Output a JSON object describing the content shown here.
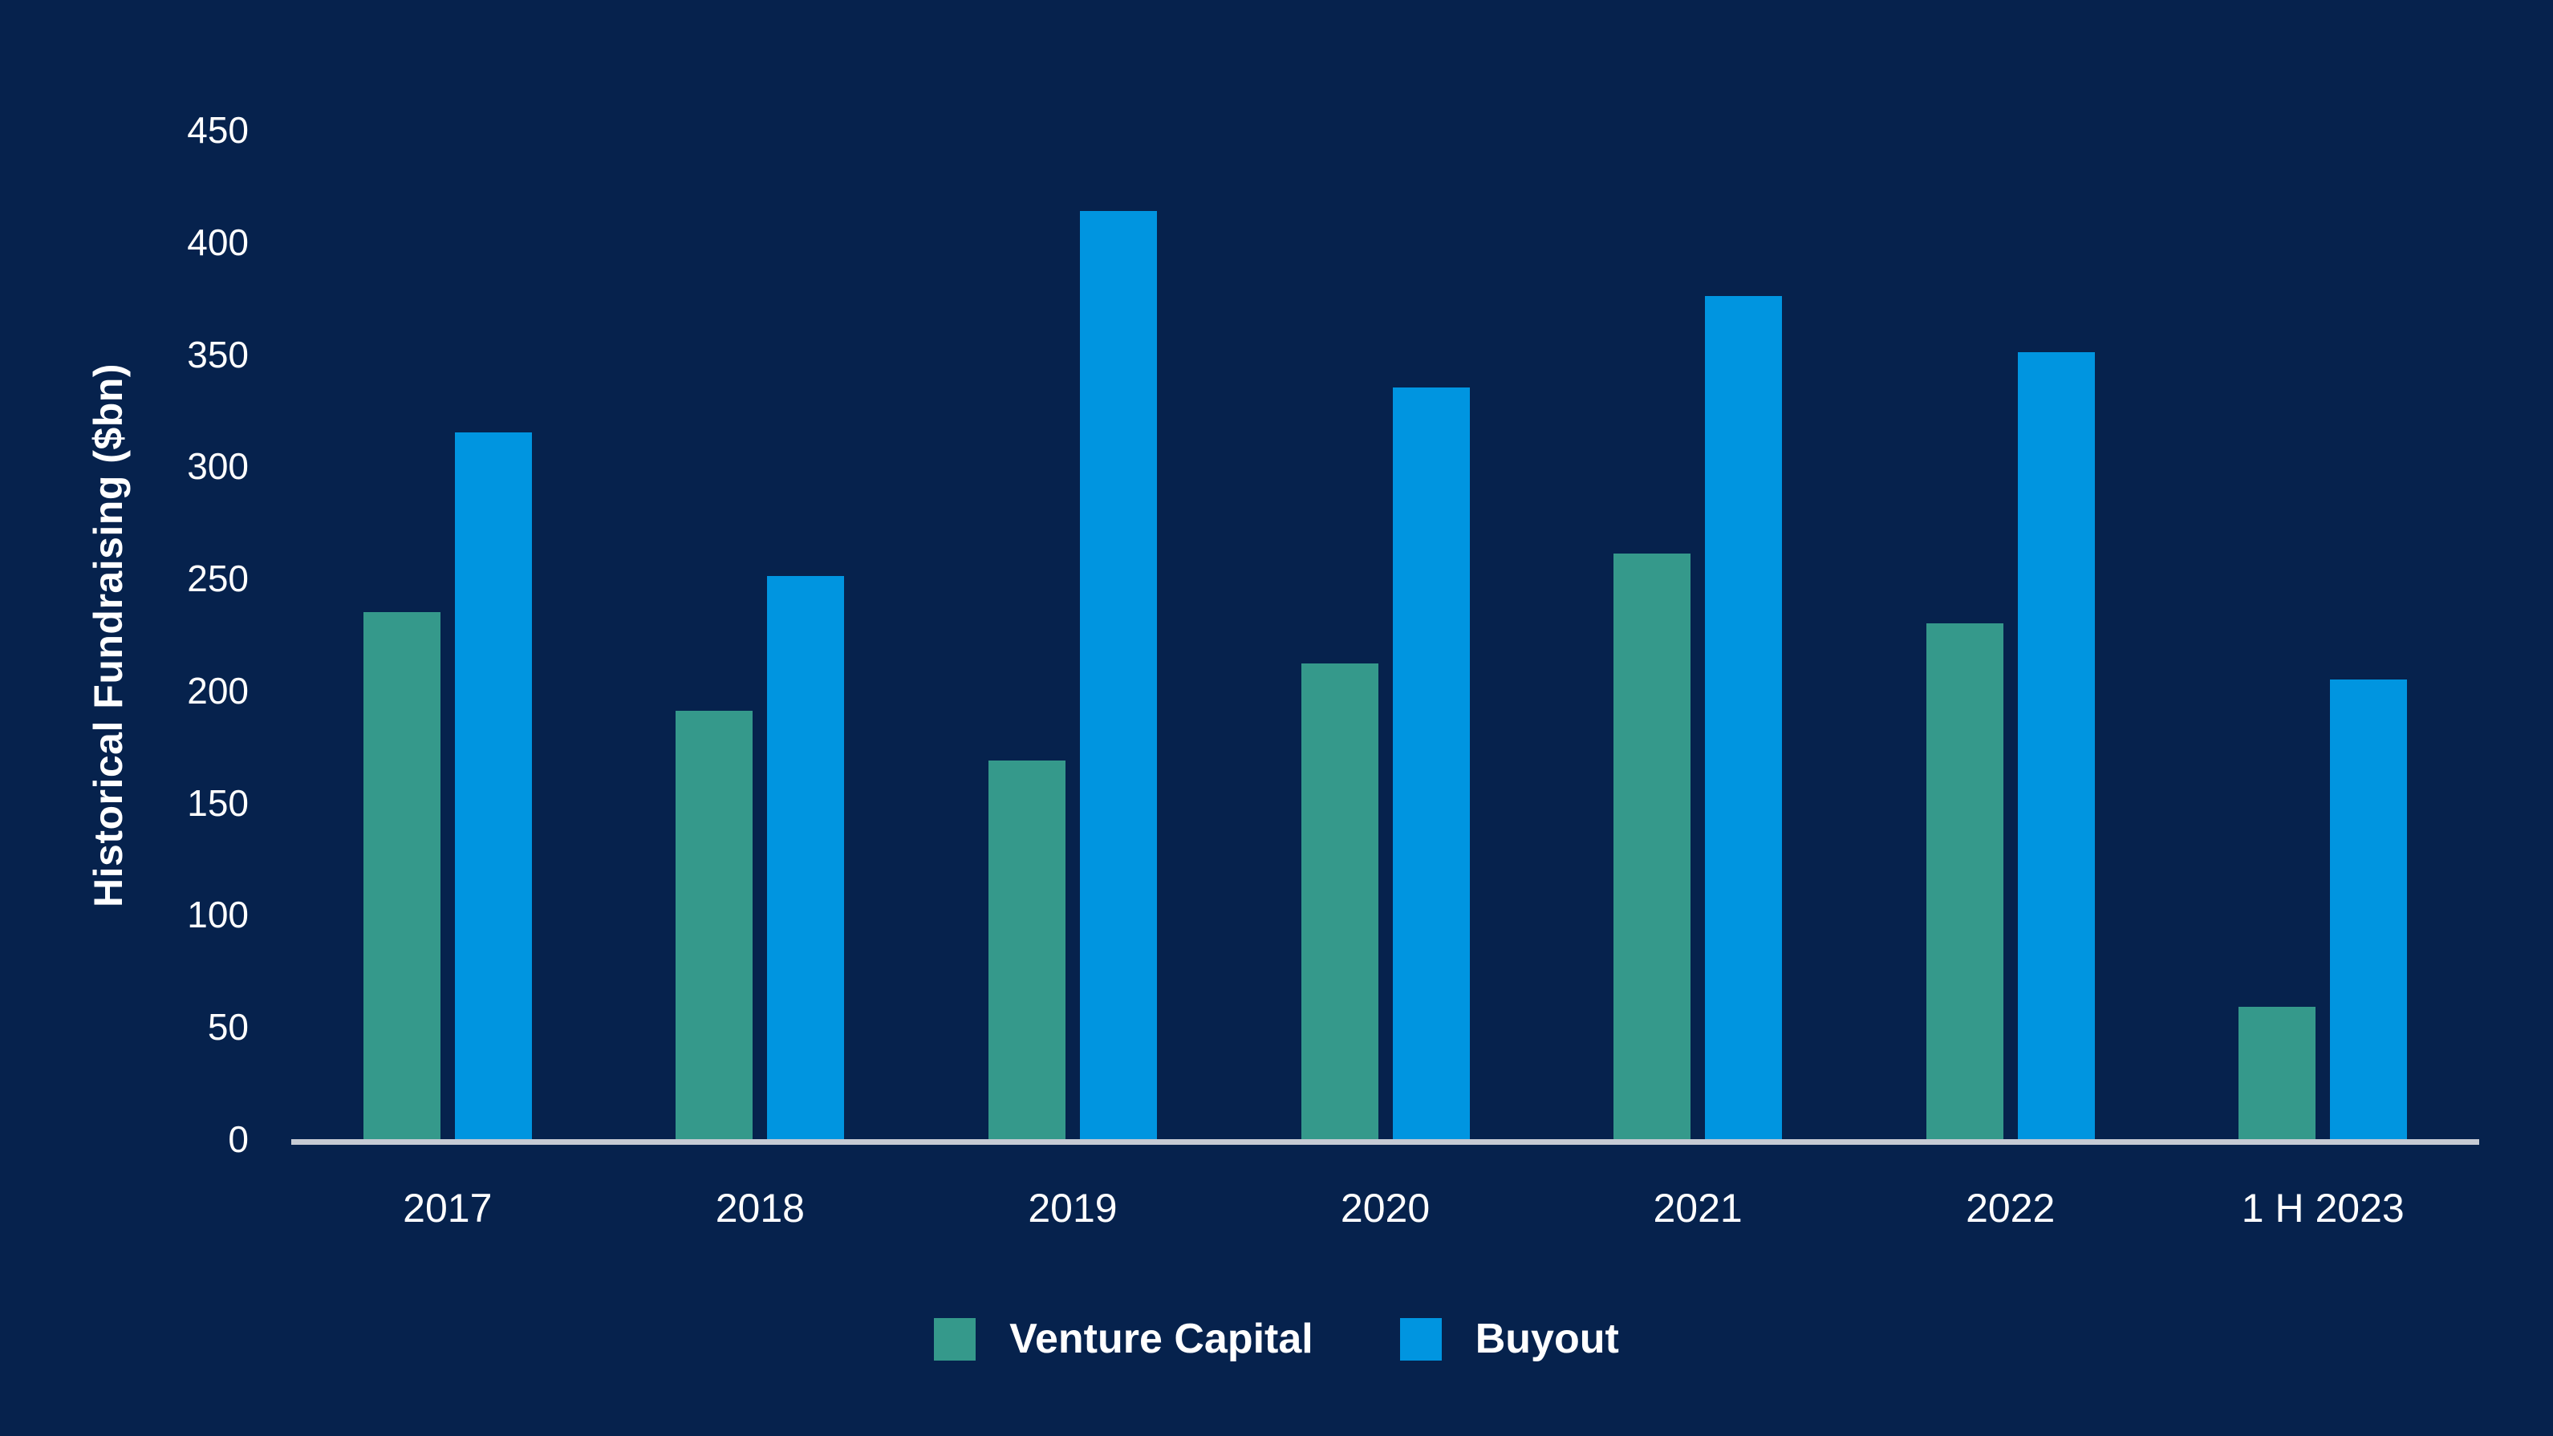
{
  "chart_data": {
    "type": "bar",
    "title": "",
    "categories": [
      "2017",
      "2018",
      "2019",
      "2020",
      "2021",
      "2022",
      "1 H 2023"
    ],
    "series": [
      {
        "name": "Venture Capital",
        "color": "#35998B",
        "values": [
          235,
          191,
          169,
          212,
          261,
          230,
          59
        ]
      },
      {
        "name": "Buyout",
        "color": "#0095E0",
        "values": [
          315,
          251,
          414,
          335,
          376,
          351,
          205
        ]
      }
    ],
    "xlabel": "",
    "ylabel": "Historical Fundraising ($bn)",
    "ylim": [
      0,
      450
    ],
    "yticks": [
      450,
      400,
      350,
      300,
      250,
      200,
      150,
      100,
      50,
      0
    ],
    "grid": false,
    "legend_position": "bottom"
  },
  "colors": {
    "background": "#06224D",
    "axis_line": "#C6CBD4",
    "text": "#FFFFFF"
  }
}
